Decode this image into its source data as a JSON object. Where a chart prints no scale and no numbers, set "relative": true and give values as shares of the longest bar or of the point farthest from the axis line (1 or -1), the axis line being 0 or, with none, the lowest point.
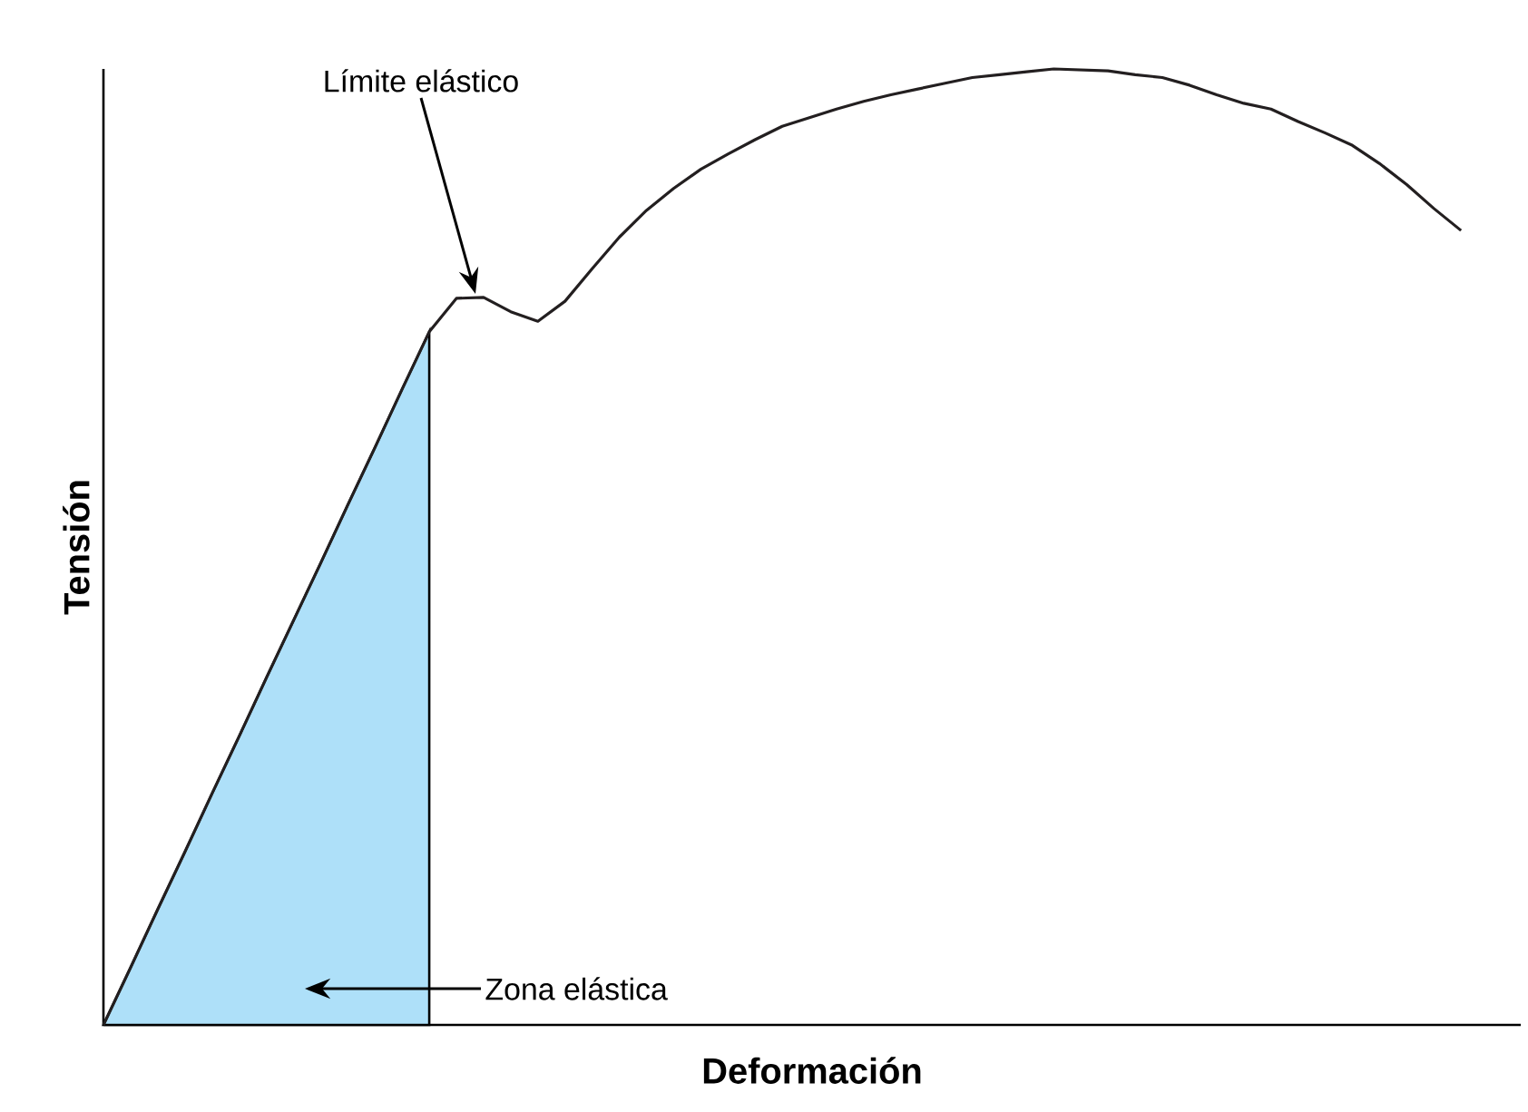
{
  "chart_data": {
    "type": "line",
    "relative": true,
    "xlabel": "Deformación",
    "ylabel": "Tensión",
    "categories": [
      null,
      null,
      null,
      null,
      null,
      null,
      null,
      null,
      null,
      null,
      null,
      null,
      null,
      null,
      null,
      null,
      null,
      null,
      null,
      null,
      null,
      null,
      null,
      null,
      null,
      null,
      null,
      null,
      null,
      null,
      null,
      null,
      null,
      null,
      null,
      null,
      null,
      null,
      null,
      null,
      null,
      null,
      null,
      null,
      null,
      null,
      null,
      null,
      null,
      null,
      null
    ],
    "series": [
      {
        "type": "area",
        "color": "#aee0f9",
        "values": [
          0,
          0.06,
          0.121,
          0.181,
          0.242,
          0.302,
          0.363,
          0.423,
          0.483,
          0.544,
          0.604,
          0.665,
          0.725,
          null,
          null,
          null,
          null,
          null,
          null,
          null,
          null,
          null,
          null,
          null,
          null,
          null,
          null,
          null,
          null,
          null,
          null,
          null,
          null,
          null,
          null,
          null,
          null,
          null,
          null,
          null,
          null,
          null,
          null,
          null,
          null,
          null,
          null,
          null,
          null,
          null,
          null
        ]
      },
      {
        "color": "#231f20",
        "values": [
          0,
          0.06,
          0.121,
          0.181,
          0.242,
          0.302,
          0.363,
          0.423,
          0.483,
          0.544,
          0.604,
          0.665,
          0.725,
          0.76,
          0.761,
          0.746,
          0.736,
          0.757,
          0.791,
          0.824,
          0.852,
          0.875,
          0.895,
          0.911,
          0.926,
          0.94,
          0.949,
          0.958,
          0.966,
          0.973,
          0.979,
          0.985,
          0.991,
          0.994,
          0.997,
          1,
          0.999,
          0.998,
          0.994,
          0.991,
          0.983,
          0.973,
          0.964,
          0.958,
          0.945,
          0.933,
          0.92,
          0.901,
          0.879,
          0.854,
          0.831
        ]
      }
    ],
    "annotations": [
      "Límite elástico",
      "Zona elástica"
    ]
  }
}
